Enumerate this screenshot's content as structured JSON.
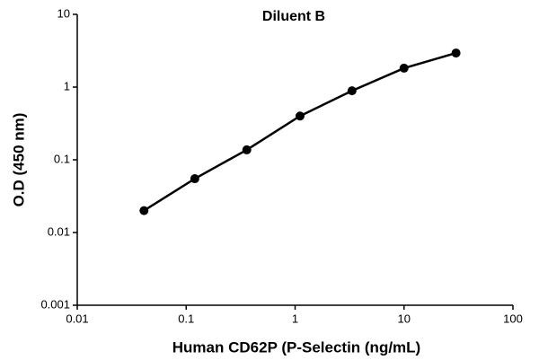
{
  "chart_data": {
    "type": "line",
    "title": "Diluent B",
    "x_label": "Human CD62P (P-Selectin (ng/mL)",
    "y_label": "O.D (450 nm)",
    "x": [
      0.041,
      0.12,
      0.36,
      1.11,
      3.33,
      10,
      30
    ],
    "values": [
      0.02,
      0.055,
      0.137,
      0.4,
      0.89,
      1.82,
      2.94
    ],
    "color": "#000000",
    "xscale": "log",
    "yscale": "log",
    "xlim": [
      0.01,
      100
    ],
    "xticks": [
      0.01,
      0.1,
      1,
      10,
      100
    ],
    "ylim": [
      0.001,
      10
    ],
    "yticks": [
      0.001,
      0.01,
      0.1,
      1,
      10
    ],
    "grid": false
  }
}
